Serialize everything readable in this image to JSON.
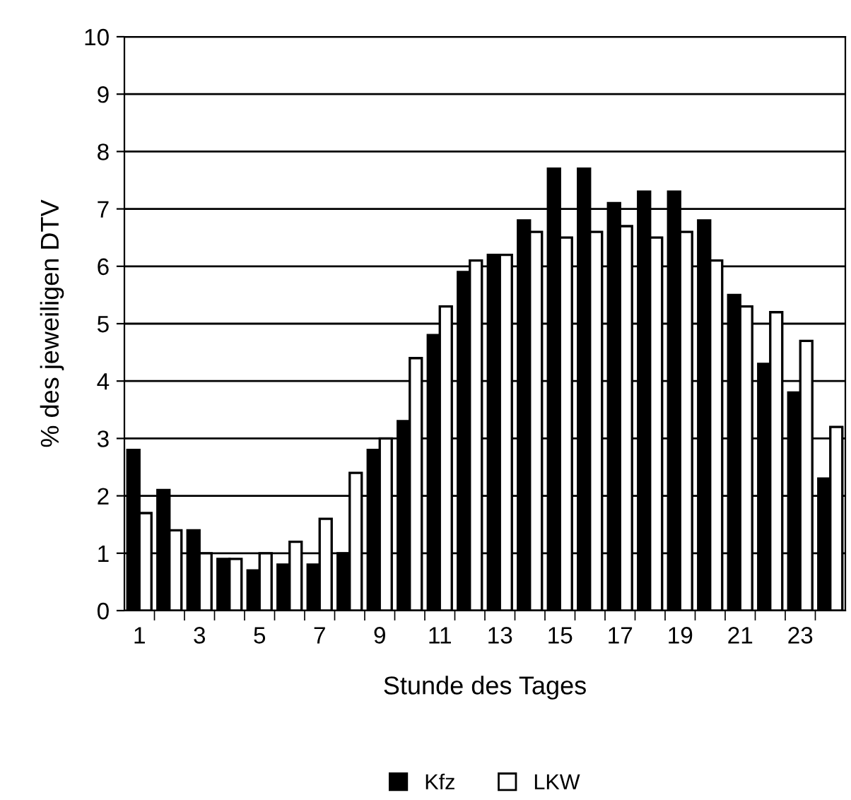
{
  "chart_data": {
    "type": "bar",
    "xlabel": "Stunde des Tages",
    "ylabel": "% des jeweiligen DTV",
    "categories": [
      "1",
      null,
      "3",
      null,
      "5",
      null,
      "7",
      null,
      "9",
      null,
      "11",
      null,
      "13",
      null,
      "15",
      null,
      "17",
      null,
      "19",
      null,
      "21",
      null,
      "23",
      null
    ],
    "series": [
      {
        "name": "Kfz",
        "color": "#000000",
        "values": [
          2.8,
          2.1,
          1.4,
          0.9,
          0.7,
          0.8,
          0.8,
          1.0,
          2.8,
          3.3,
          4.8,
          5.9,
          6.2,
          6.8,
          7.7,
          7.7,
          7.1,
          7.3,
          7.3,
          6.8,
          5.5,
          4.3,
          3.8,
          2.3
        ]
      },
      {
        "name": "LKW",
        "color": "#ffffff",
        "values": [
          1.7,
          1.4,
          1.0,
          0.9,
          1.0,
          1.2,
          1.6,
          2.4,
          3.0,
          4.4,
          5.3,
          6.1,
          6.2,
          6.6,
          6.5,
          6.6,
          6.7,
          6.5,
          6.6,
          6.1,
          5.3,
          5.2,
          4.7,
          3.2
        ]
      }
    ],
    "ylim": [
      0,
      10
    ],
    "yticks": [
      0,
      1,
      2,
      3,
      4,
      5,
      6,
      7,
      8,
      9,
      10
    ],
    "grid": "y",
    "legend": "bottom"
  }
}
